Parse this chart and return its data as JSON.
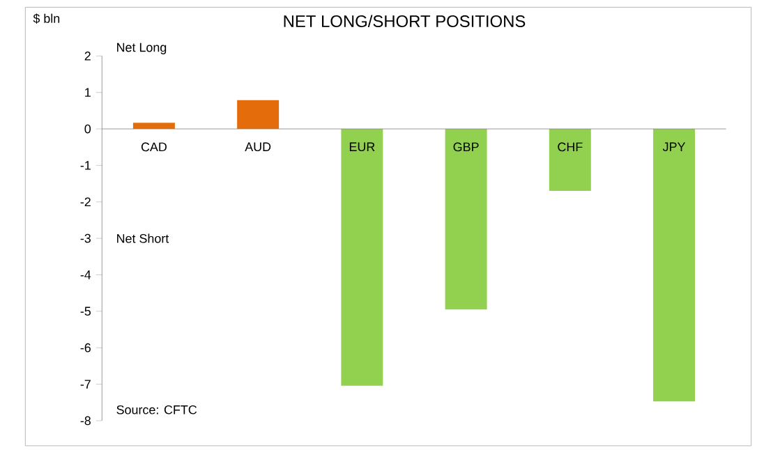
{
  "chart_data": {
    "type": "bar",
    "title": "NET LONG/SHORT POSITIONS",
    "ylabel": "$ bln",
    "categories": [
      "CAD",
      "AUD",
      "EUR",
      "GBP",
      "CHF",
      "JPY"
    ],
    "values": [
      0.17,
      0.79,
      -7.04,
      -4.95,
      -1.7,
      -7.47
    ],
    "colors": [
      "#e46c0a",
      "#e46c0a",
      "#92d050",
      "#92d050",
      "#92d050",
      "#92d050"
    ],
    "ylim": [
      -8,
      2
    ],
    "yticks": [
      -8,
      -7,
      -6,
      -5,
      -4,
      -3,
      -2,
      -1,
      0,
      1,
      2
    ],
    "grid": false,
    "annotations": [
      "Net Long",
      "Net Short",
      "Source: CFTC"
    ]
  }
}
